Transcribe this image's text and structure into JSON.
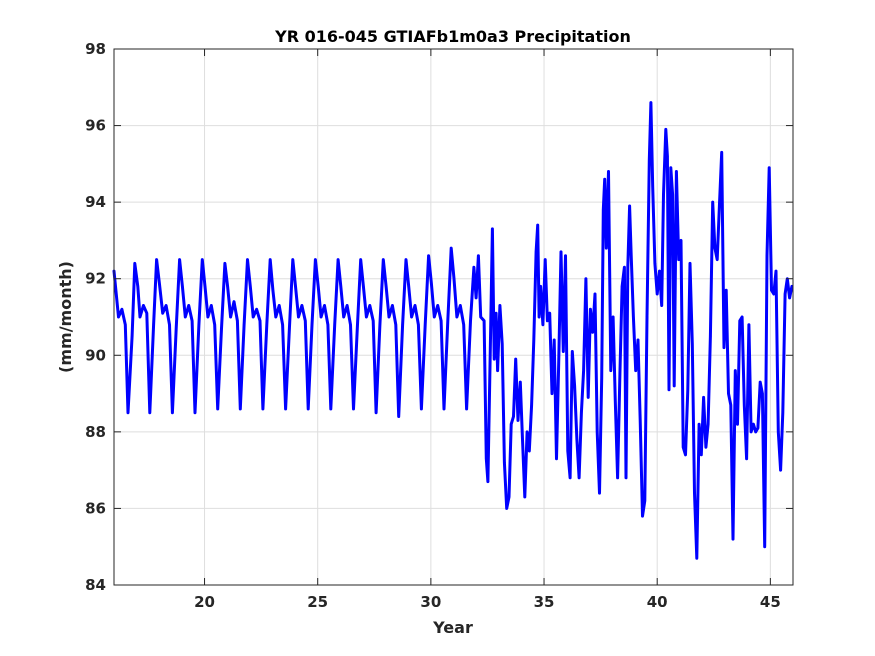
{
  "chart_data": {
    "type": "line",
    "title": "YR 016-045 GTIAFb1m0a3 Precipitation",
    "xlabel": "Year",
    "ylabel": "(mm/month)",
    "xlim": [
      16,
      46
    ],
    "ylim": [
      84,
      98
    ],
    "xticks": [
      20,
      25,
      30,
      35,
      40,
      45
    ],
    "yticks": [
      84,
      86,
      88,
      90,
      92,
      94,
      96,
      98
    ],
    "grid": true,
    "series": [
      {
        "color": "#0000ff",
        "points": [
          [
            16.0,
            92.2
          ],
          [
            16.2,
            91.0
          ],
          [
            16.35,
            91.2
          ],
          [
            16.5,
            90.8
          ],
          [
            16.62,
            88.5
          ],
          [
            16.8,
            90.5
          ],
          [
            16.92,
            92.4
          ],
          [
            17.05,
            91.8
          ],
          [
            17.15,
            91.0
          ],
          [
            17.3,
            91.3
          ],
          [
            17.45,
            91.1
          ],
          [
            17.58,
            88.5
          ],
          [
            17.75,
            90.8
          ],
          [
            17.88,
            92.5
          ],
          [
            18.0,
            91.9
          ],
          [
            18.15,
            91.1
          ],
          [
            18.3,
            91.3
          ],
          [
            18.45,
            90.8
          ],
          [
            18.58,
            88.5
          ],
          [
            18.75,
            90.7
          ],
          [
            18.9,
            92.5
          ],
          [
            19.02,
            91.8
          ],
          [
            19.15,
            91.0
          ],
          [
            19.3,
            91.3
          ],
          [
            19.45,
            90.9
          ],
          [
            19.58,
            88.5
          ],
          [
            19.75,
            90.8
          ],
          [
            19.9,
            92.5
          ],
          [
            20.02,
            91.8
          ],
          [
            20.15,
            91.0
          ],
          [
            20.3,
            91.3
          ],
          [
            20.45,
            90.8
          ],
          [
            20.58,
            88.6
          ],
          [
            20.75,
            90.7
          ],
          [
            20.9,
            92.4
          ],
          [
            21.02,
            91.8
          ],
          [
            21.15,
            91.0
          ],
          [
            21.3,
            91.4
          ],
          [
            21.45,
            90.9
          ],
          [
            21.58,
            88.6
          ],
          [
            21.75,
            90.8
          ],
          [
            21.9,
            92.5
          ],
          [
            22.02,
            91.8
          ],
          [
            22.15,
            91.0
          ],
          [
            22.3,
            91.2
          ],
          [
            22.45,
            90.9
          ],
          [
            22.58,
            88.6
          ],
          [
            22.75,
            90.8
          ],
          [
            22.9,
            92.5
          ],
          [
            23.02,
            91.7
          ],
          [
            23.15,
            91.0
          ],
          [
            23.3,
            91.3
          ],
          [
            23.45,
            90.8
          ],
          [
            23.58,
            88.6
          ],
          [
            23.75,
            90.7
          ],
          [
            23.9,
            92.5
          ],
          [
            24.02,
            91.8
          ],
          [
            24.15,
            91.0
          ],
          [
            24.3,
            91.3
          ],
          [
            24.45,
            90.9
          ],
          [
            24.58,
            88.6
          ],
          [
            24.75,
            90.8
          ],
          [
            24.9,
            92.5
          ],
          [
            25.02,
            91.8
          ],
          [
            25.15,
            91.0
          ],
          [
            25.3,
            91.3
          ],
          [
            25.45,
            90.8
          ],
          [
            25.58,
            88.6
          ],
          [
            25.75,
            90.8
          ],
          [
            25.9,
            92.5
          ],
          [
            26.02,
            91.8
          ],
          [
            26.15,
            91.0
          ],
          [
            26.3,
            91.3
          ],
          [
            26.45,
            90.8
          ],
          [
            26.58,
            88.6
          ],
          [
            26.75,
            90.7
          ],
          [
            26.9,
            92.5
          ],
          [
            27.02,
            91.8
          ],
          [
            27.15,
            91.0
          ],
          [
            27.3,
            91.3
          ],
          [
            27.45,
            90.9
          ],
          [
            27.58,
            88.5
          ],
          [
            27.75,
            90.8
          ],
          [
            27.9,
            92.5
          ],
          [
            28.02,
            91.8
          ],
          [
            28.15,
            91.0
          ],
          [
            28.3,
            91.3
          ],
          [
            28.45,
            90.8
          ],
          [
            28.58,
            88.4
          ],
          [
            28.75,
            90.8
          ],
          [
            28.9,
            92.5
          ],
          [
            29.02,
            91.8
          ],
          [
            29.15,
            91.0
          ],
          [
            29.3,
            91.3
          ],
          [
            29.45,
            90.8
          ],
          [
            29.58,
            88.6
          ],
          [
            29.75,
            90.8
          ],
          [
            29.9,
            92.6
          ],
          [
            30.02,
            91.9
          ],
          [
            30.15,
            91.0
          ],
          [
            30.3,
            91.3
          ],
          [
            30.45,
            90.9
          ],
          [
            30.58,
            88.6
          ],
          [
            30.75,
            90.9
          ],
          [
            30.9,
            92.8
          ],
          [
            31.02,
            92.0
          ],
          [
            31.15,
            91.0
          ],
          [
            31.3,
            91.3
          ],
          [
            31.45,
            90.8
          ],
          [
            31.58,
            88.6
          ],
          [
            31.75,
            90.9
          ],
          [
            31.9,
            92.3
          ],
          [
            32.0,
            91.5
          ],
          [
            32.1,
            92.6
          ],
          [
            32.2,
            91.0
          ],
          [
            32.35,
            90.9
          ],
          [
            32.45,
            87.3
          ],
          [
            32.52,
            86.7
          ],
          [
            32.62,
            90.0
          ],
          [
            32.72,
            93.3
          ],
          [
            32.8,
            89.9
          ],
          [
            32.88,
            91.1
          ],
          [
            32.95,
            89.6
          ],
          [
            33.05,
            91.3
          ],
          [
            33.15,
            90.3
          ],
          [
            33.25,
            87.2
          ],
          [
            33.35,
            86.0
          ],
          [
            33.45,
            86.3
          ],
          [
            33.55,
            88.2
          ],
          [
            33.65,
            88.4
          ],
          [
            33.75,
            89.9
          ],
          [
            33.85,
            88.3
          ],
          [
            33.95,
            89.3
          ],
          [
            34.05,
            87.8
          ],
          [
            34.15,
            86.3
          ],
          [
            34.25,
            88.0
          ],
          [
            34.35,
            87.5
          ],
          [
            34.45,
            88.7
          ],
          [
            34.55,
            90.4
          ],
          [
            34.65,
            92.7
          ],
          [
            34.72,
            93.4
          ],
          [
            34.78,
            91.0
          ],
          [
            34.85,
            91.8
          ],
          [
            34.95,
            90.8
          ],
          [
            35.05,
            92.5
          ],
          [
            35.15,
            90.9
          ],
          [
            35.25,
            91.1
          ],
          [
            35.35,
            89.0
          ],
          [
            35.45,
            90.4
          ],
          [
            35.55,
            87.3
          ],
          [
            35.65,
            89.8
          ],
          [
            35.75,
            92.7
          ],
          [
            35.85,
            90.1
          ],
          [
            35.95,
            92.6
          ],
          [
            36.05,
            87.5
          ],
          [
            36.15,
            86.8
          ],
          [
            36.25,
            90.1
          ],
          [
            36.35,
            89.2
          ],
          [
            36.45,
            87.8
          ],
          [
            36.55,
            86.8
          ],
          [
            36.65,
            88.5
          ],
          [
            36.75,
            89.6
          ],
          [
            36.85,
            92.0
          ],
          [
            36.95,
            88.9
          ],
          [
            37.05,
            91.2
          ],
          [
            37.15,
            90.6
          ],
          [
            37.25,
            91.6
          ],
          [
            37.35,
            88.0
          ],
          [
            37.45,
            86.4
          ],
          [
            37.55,
            89.4
          ],
          [
            37.62,
            93.8
          ],
          [
            37.68,
            94.6
          ],
          [
            37.75,
            92.8
          ],
          [
            37.85,
            94.8
          ],
          [
            37.95,
            89.6
          ],
          [
            38.05,
            91.0
          ],
          [
            38.15,
            88.8
          ],
          [
            38.25,
            86.8
          ],
          [
            38.35,
            89.5
          ],
          [
            38.45,
            91.8
          ],
          [
            38.55,
            92.3
          ],
          [
            38.62,
            86.8
          ],
          [
            38.7,
            92.3
          ],
          [
            38.78,
            93.9
          ],
          [
            38.85,
            92.6
          ],
          [
            38.95,
            91.0
          ],
          [
            39.05,
            89.6
          ],
          [
            39.15,
            90.4
          ],
          [
            39.25,
            88.3
          ],
          [
            39.35,
            85.8
          ],
          [
            39.45,
            86.2
          ],
          [
            39.55,
            91.0
          ],
          [
            39.65,
            95.1
          ],
          [
            39.72,
            96.6
          ],
          [
            39.8,
            94.4
          ],
          [
            39.9,
            92.4
          ],
          [
            40.0,
            91.6
          ],
          [
            40.1,
            92.2
          ],
          [
            40.2,
            91.3
          ],
          [
            40.28,
            94.2
          ],
          [
            40.38,
            95.9
          ],
          [
            40.45,
            95.2
          ],
          [
            40.52,
            89.1
          ],
          [
            40.6,
            94.9
          ],
          [
            40.68,
            94.2
          ],
          [
            40.75,
            89.2
          ],
          [
            40.85,
            94.8
          ],
          [
            40.95,
            92.5
          ],
          [
            41.05,
            93.0
          ],
          [
            41.15,
            87.6
          ],
          [
            41.25,
            87.4
          ],
          [
            41.35,
            89.1
          ],
          [
            41.45,
            92.4
          ],
          [
            41.55,
            90.3
          ],
          [
            41.65,
            86.4
          ],
          [
            41.75,
            84.7
          ],
          [
            41.85,
            88.2
          ],
          [
            41.95,
            87.4
          ],
          [
            42.05,
            88.9
          ],
          [
            42.15,
            87.6
          ],
          [
            42.25,
            88.2
          ],
          [
            42.35,
            90.5
          ],
          [
            42.45,
            94.0
          ],
          [
            42.55,
            92.8
          ],
          [
            42.65,
            92.5
          ],
          [
            42.75,
            93.9
          ],
          [
            42.85,
            95.3
          ],
          [
            42.95,
            90.2
          ],
          [
            43.05,
            91.7
          ],
          [
            43.15,
            89.0
          ],
          [
            43.25,
            88.7
          ],
          [
            43.35,
            85.2
          ],
          [
            43.45,
            89.6
          ],
          [
            43.55,
            88.2
          ],
          [
            43.65,
            90.9
          ],
          [
            43.75,
            91.0
          ],
          [
            43.85,
            88.7
          ],
          [
            43.95,
            87.3
          ],
          [
            44.05,
            90.8
          ],
          [
            44.15,
            88.0
          ],
          [
            44.25,
            88.2
          ],
          [
            44.35,
            88.0
          ],
          [
            44.45,
            88.1
          ],
          [
            44.55,
            89.3
          ],
          [
            44.65,
            89.0
          ],
          [
            44.75,
            85.0
          ],
          [
            44.85,
            92.6
          ],
          [
            44.95,
            94.9
          ],
          [
            45.05,
            91.7
          ],
          [
            45.15,
            91.6
          ],
          [
            45.25,
            92.2
          ],
          [
            45.35,
            88.0
          ],
          [
            45.45,
            87.0
          ],
          [
            45.55,
            88.5
          ],
          [
            45.65,
            91.6
          ],
          [
            45.75,
            92.0
          ],
          [
            45.85,
            91.5
          ],
          [
            45.95,
            91.8
          ]
        ]
      }
    ]
  }
}
